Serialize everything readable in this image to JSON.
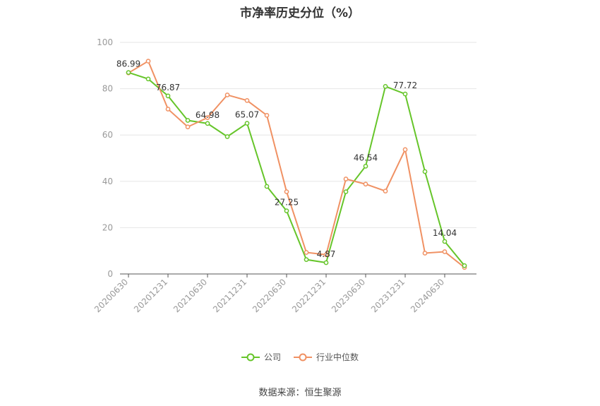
{
  "title": "市净率历史分位（%）",
  "source": "数据来源：恒生聚源",
  "colors": {
    "company": "#66c52a",
    "industry": "#f09163",
    "grid": "#e6e6e6",
    "axis": "#555555",
    "tick": "#999999"
  },
  "chart_data": {
    "type": "line",
    "title": "市净率历史分位（%）",
    "ylim": [
      0,
      100
    ],
    "yticks": [
      0,
      20,
      40,
      60,
      80,
      100
    ],
    "x": [
      "20200630",
      "20200930",
      "20201231",
      "20210331",
      "20210630",
      "20210930",
      "20211231",
      "20220331",
      "20220630",
      "20220930",
      "20221231",
      "20230331",
      "20230630",
      "20230930",
      "20231231",
      "20240331",
      "20240630",
      "20240930"
    ],
    "xtick_labels": [
      "20200630",
      "20201231",
      "20210630",
      "20211231",
      "20220630",
      "20221231",
      "20230630",
      "20231231",
      "20240630"
    ],
    "series": [
      {
        "name": "公司",
        "color": "#66c52a",
        "values": [
          86.99,
          84.2,
          76.87,
          66.3,
          64.98,
          59.3,
          65.07,
          37.8,
          27.25,
          6.2,
          4.87,
          35.5,
          46.54,
          81.0,
          77.72,
          44.2,
          14.04,
          3.6
        ],
        "labels": [
          "86.99",
          null,
          "76.87",
          null,
          "64.98",
          null,
          "65.07",
          null,
          "27.25",
          null,
          "4.87",
          null,
          "46.54",
          null,
          "77.72",
          null,
          "14.04",
          null
        ]
      },
      {
        "name": "行业中位数",
        "color": "#f09163",
        "values": [
          86.8,
          91.9,
          71.2,
          63.5,
          67.5,
          77.3,
          74.9,
          68.5,
          35.5,
          9.3,
          8.3,
          41.0,
          38.8,
          35.8,
          53.7,
          9.0,
          9.6,
          2.8
        ]
      }
    ],
    "legend_position": "bottom"
  }
}
